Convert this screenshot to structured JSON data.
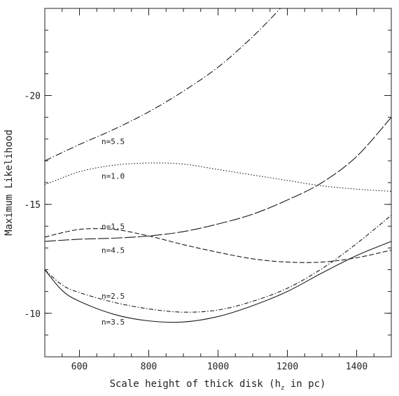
{
  "chart_data": {
    "type": "line",
    "title": "",
    "xlabel": "Scale height of thick disk (h",
    "xlabel_sub": "z",
    "xlabel_end": " in pc)",
    "ylabel": "Maximum Likelihood",
    "xlim": [
      500,
      1500
    ],
    "ylim": [
      -8.0,
      -24.0
    ],
    "y_axis_inverted": true,
    "x_ticks": [
      600,
      800,
      1000,
      1200,
      1400
    ],
    "x_tick_labels": [
      "600",
      "800",
      "1000",
      "1200",
      "1400"
    ],
    "x_minor_step": 50,
    "y_ticks": [
      -10,
      -15,
      -20
    ],
    "y_tick_labels": [
      "-10",
      "-15",
      "-20"
    ],
    "y_minor_step": 1,
    "grid": false,
    "legend": "none",
    "series": [
      {
        "name": "n=5.5",
        "dash": "10,3,1.5,3",
        "x": [
          500,
          600,
          700,
          800,
          900,
          1000,
          1100,
          1180
        ],
        "y": [
          -17.0,
          -17.75,
          -18.45,
          -19.25,
          -20.2,
          -21.3,
          -22.7,
          -24.0
        ],
        "label_at": [
          1.0,
          -17.9
        ]
      },
      {
        "name": "n=1.0",
        "dash": "1.5,2.5",
        "x": [
          500,
          600,
          700,
          800,
          900,
          1000,
          1100,
          1200,
          1300,
          1400,
          1500
        ],
        "y": [
          -15.9,
          -16.5,
          -16.8,
          -16.9,
          -16.85,
          -16.6,
          -16.35,
          -16.1,
          -15.85,
          -15.7,
          -15.6
        ],
        "label_at": [
          1.0,
          -16.3
        ]
      },
      {
        "name": "n=4.5",
        "dash": "16,3",
        "x": [
          500,
          600,
          700,
          800,
          900,
          1000,
          1100,
          1200,
          1300,
          1400,
          1500
        ],
        "y": [
          -13.3,
          -13.4,
          -13.45,
          -13.55,
          -13.75,
          -14.1,
          -14.55,
          -15.2,
          -16.0,
          -17.2,
          -19.0
        ],
        "label_at": [
          1.0,
          -12.9
        ]
      },
      {
        "name": "n=1.5",
        "dash": "7,3",
        "x": [
          500,
          600,
          700,
          800,
          900,
          1000,
          1100,
          1200,
          1300,
          1400,
          1500
        ],
        "y": [
          -13.5,
          -13.85,
          -13.85,
          -13.55,
          -13.15,
          -12.8,
          -12.5,
          -12.35,
          -12.35,
          -12.55,
          -12.9
        ],
        "label_at": [
          1.0,
          -14.0
        ]
      },
      {
        "name": "n=2.5",
        "dash": "6,2.5,1.5,2.5",
        "x": [
          500,
          550,
          600,
          700,
          800,
          900,
          1000,
          1100,
          1200,
          1300,
          1400,
          1500
        ],
        "y": [
          -12.0,
          -11.3,
          -10.95,
          -10.5,
          -10.2,
          -10.05,
          -10.15,
          -10.55,
          -11.15,
          -12.05,
          -13.2,
          -14.5
        ],
        "label_at": [
          1.0,
          -10.8
        ]
      },
      {
        "name": "n=3.5",
        "dash": "",
        "x": [
          500,
          550,
          600,
          700,
          800,
          900,
          1000,
          1100,
          1200,
          1300,
          1400,
          1500
        ],
        "y": [
          -12.0,
          -11.05,
          -10.55,
          -9.95,
          -9.65,
          -9.6,
          -9.85,
          -10.35,
          -11.0,
          -11.85,
          -12.65,
          -13.3
        ],
        "label_at": [
          1.0,
          -9.6
        ]
      }
    ]
  }
}
